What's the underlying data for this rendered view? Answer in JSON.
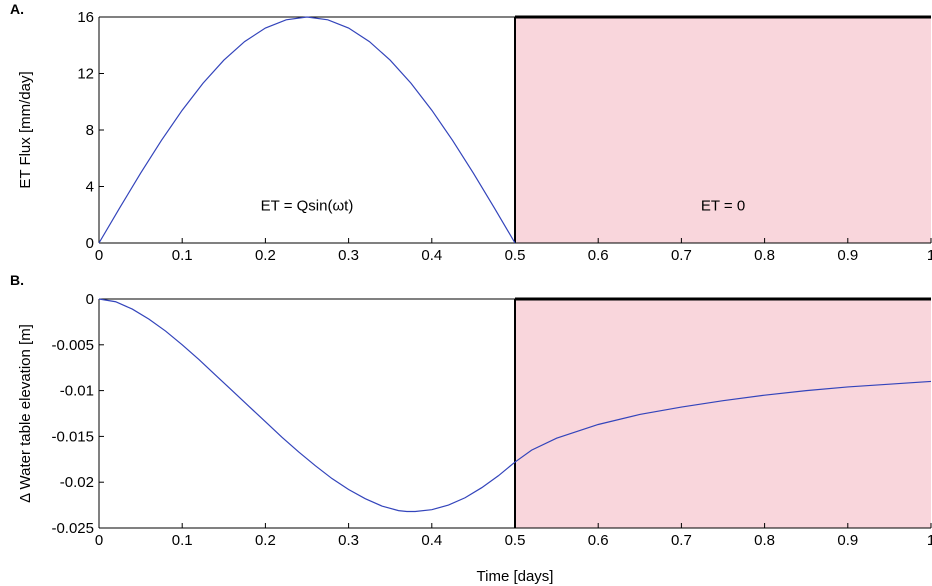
{
  "figure": {
    "xlabel": "Time [days]"
  },
  "chart_data": [
    {
      "type": "line",
      "panel_label": "A.",
      "ylabel": "ET Flux [mm/day]",
      "xlim": [
        0,
        1
      ],
      "ylim": [
        0,
        16
      ],
      "xticks": [
        "0",
        "0.1",
        "0.2",
        "0.3",
        "0.4",
        "0.5",
        "0.6",
        "0.7",
        "0.8",
        "0.9",
        "1"
      ],
      "yticks": [
        "0",
        "4",
        "8",
        "12",
        "16"
      ],
      "shaded_region": {
        "x_start": 0.5,
        "x_end": 1,
        "color": "#f9d6dc"
      },
      "annotations": [
        {
          "text": "ET = Qsin(ωt)",
          "x": 0.25,
          "y": 2.3
        },
        {
          "text": "ET = 0",
          "x": 0.75,
          "y": 2.3
        }
      ],
      "series": [
        {
          "color": "#3344bb",
          "x": [
            0,
            0.025,
            0.05,
            0.075,
            0.1,
            0.125,
            0.15,
            0.175,
            0.2,
            0.225,
            0.25,
            0.275,
            0.3,
            0.325,
            0.35,
            0.375,
            0.4,
            0.425,
            0.45,
            0.475,
            0.5
          ],
          "y": [
            0,
            2.5,
            4.94,
            7.26,
            9.4,
            11.31,
            12.94,
            14.26,
            15.22,
            15.8,
            16,
            15.8,
            15.22,
            14.26,
            12.94,
            11.31,
            9.4,
            7.26,
            4.94,
            2.5,
            0
          ]
        }
      ]
    },
    {
      "type": "line",
      "panel_label": "B.",
      "ylabel": "Δ Water table elevation [m]",
      "xlim": [
        0,
        1
      ],
      "ylim": [
        -0.025,
        0
      ],
      "xticks": [
        "0",
        "0.1",
        "0.2",
        "0.3",
        "0.4",
        "0.5",
        "0.6",
        "0.7",
        "0.8",
        "0.9",
        "1"
      ],
      "yticks": [
        "0",
        "-0.005",
        "-0.01",
        "-0.015",
        "-0.02",
        "-0.025"
      ],
      "shaded_region": {
        "x_start": 0.5,
        "x_end": 1,
        "color": "#f9d6dc"
      },
      "series": [
        {
          "color": "#3344bb",
          "x": [
            0,
            0.02,
            0.04,
            0.06,
            0.08,
            0.1,
            0.12,
            0.14,
            0.16,
            0.18,
            0.2,
            0.22,
            0.24,
            0.26,
            0.28,
            0.3,
            0.32,
            0.34,
            0.36,
            0.37,
            0.38,
            0.4,
            0.42,
            0.44,
            0.46,
            0.48,
            0.5,
            0.52,
            0.55,
            0.6,
            0.65,
            0.7,
            0.75,
            0.8,
            0.85,
            0.9,
            0.95,
            1.0
          ],
          "y": [
            0,
            -0.0003,
            -0.0011,
            -0.0022,
            -0.0035,
            -0.005,
            -0.0066,
            -0.0083,
            -0.01,
            -0.0117,
            -0.0134,
            -0.0151,
            -0.0167,
            -0.0182,
            -0.0196,
            -0.0208,
            -0.0218,
            -0.0226,
            -0.0231,
            -0.0232,
            -0.0232,
            -0.023,
            -0.0225,
            -0.0217,
            -0.0206,
            -0.0193,
            -0.0178,
            -0.0165,
            -0.0152,
            -0.0137,
            -0.0126,
            -0.0118,
            -0.0111,
            -0.0105,
            -0.01,
            -0.0096,
            -0.0093,
            -0.009
          ]
        }
      ]
    }
  ]
}
